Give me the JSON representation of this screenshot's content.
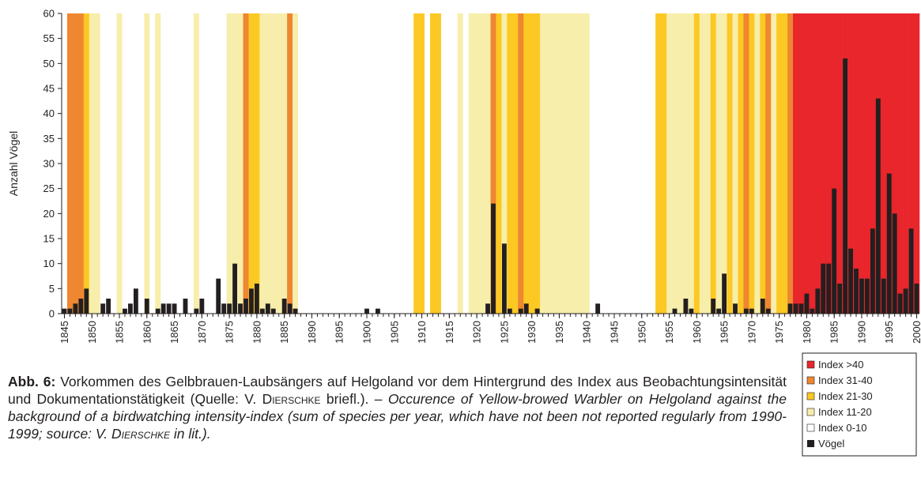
{
  "chart_data": {
    "type": "bar",
    "y_label": "Anzahl Vögel",
    "x": [
      1845,
      1846,
      1847,
      1848,
      1849,
      1850,
      1851,
      1852,
      1853,
      1854,
      1855,
      1856,
      1857,
      1858,
      1859,
      1860,
      1861,
      1862,
      1863,
      1864,
      1865,
      1866,
      1867,
      1868,
      1869,
      1870,
      1871,
      1872,
      1873,
      1874,
      1875,
      1876,
      1877,
      1878,
      1879,
      1880,
      1881,
      1882,
      1883,
      1884,
      1885,
      1886,
      1887,
      1888,
      1889,
      1890,
      1891,
      1892,
      1893,
      1894,
      1895,
      1896,
      1897,
      1898,
      1899,
      1900,
      1901,
      1902,
      1903,
      1904,
      1905,
      1906,
      1907,
      1908,
      1909,
      1910,
      1911,
      1912,
      1913,
      1914,
      1915,
      1916,
      1917,
      1918,
      1919,
      1920,
      1921,
      1922,
      1923,
      1924,
      1925,
      1926,
      1927,
      1928,
      1929,
      1930,
      1931,
      1932,
      1933,
      1934,
      1935,
      1936,
      1937,
      1938,
      1939,
      1940,
      1941,
      1942,
      1943,
      1944,
      1945,
      1946,
      1947,
      1948,
      1949,
      1950,
      1951,
      1952,
      1953,
      1954,
      1955,
      1956,
      1957,
      1958,
      1959,
      1960,
      1961,
      1962,
      1963,
      1964,
      1965,
      1966,
      1967,
      1968,
      1969,
      1970,
      1971,
      1972,
      1973,
      1974,
      1975,
      1976,
      1977,
      1978,
      1979,
      1980,
      1981,
      1982,
      1983,
      1984,
      1985,
      1986,
      1987,
      1988,
      1989,
      1990,
      1991,
      1992,
      1993,
      1994,
      1995,
      1996,
      1997,
      1998,
      1999,
      2000
    ],
    "xlim": [
      1845,
      2000
    ],
    "xticks": [
      1845,
      1850,
      1855,
      1860,
      1865,
      1870,
      1875,
      1880,
      1885,
      1890,
      1895,
      1900,
      1905,
      1910,
      1915,
      1920,
      1925,
      1930,
      1935,
      1940,
      1945,
      1950,
      1955,
      1960,
      1965,
      1970,
      1975,
      1980,
      1985,
      1990,
      1995,
      2000
    ],
    "ylim": [
      0,
      60
    ],
    "yticks": [
      0,
      5,
      10,
      15,
      20,
      25,
      30,
      35,
      40,
      45,
      50,
      55,
      60
    ],
    "index_levels": [
      {
        "name": "Index >40",
        "color": "#e8262b"
      },
      {
        "name": "Index 31-40",
        "color": "#ef8631"
      },
      {
        "name": "Index 21-30",
        "color": "#fcc823"
      },
      {
        "name": "Index 11-20",
        "color": "#f7eeab"
      },
      {
        "name": "Index 0-10",
        "color": "#ffffff"
      }
    ],
    "index": [
      "Index 0-10",
      "Index 31-40",
      "Index 31-40",
      "Index 31-40",
      "Index 21-30",
      "Index 11-20",
      "Index 11-20",
      "Index 0-10",
      "Index 0-10",
      "Index 0-10",
      "Index 11-20",
      "Index 0-10",
      "Index 0-10",
      "Index 0-10",
      "Index 0-10",
      "Index 11-20",
      "Index 0-10",
      "Index 11-20",
      "Index 0-10",
      "Index 0-10",
      "Index 0-10",
      "Index 0-10",
      "Index 0-10",
      "Index 0-10",
      "Index 11-20",
      "Index 0-10",
      "Index 0-10",
      "Index 0-10",
      "Index 0-10",
      "Index 0-10",
      "Index 11-20",
      "Index 11-20",
      "Index 11-20",
      "Index 31-40",
      "Index 21-30",
      "Index 21-30",
      "Index 11-20",
      "Index 11-20",
      "Index 11-20",
      "Index 11-20",
      "Index 11-20",
      "Index 31-40",
      "Index 11-20",
      "Index 0-10",
      "Index 0-10",
      "Index 0-10",
      "Index 0-10",
      "Index 0-10",
      "Index 0-10",
      "Index 0-10",
      "Index 0-10",
      "Index 0-10",
      "Index 0-10",
      "Index 0-10",
      "Index 0-10",
      "Index 0-10",
      "Index 0-10",
      "Index 0-10",
      "Index 0-10",
      "Index 0-10",
      "Index 0-10",
      "Index 0-10",
      "Index 0-10",
      "Index 0-10",
      "Index 21-30",
      "Index 21-30",
      "Index 0-10",
      "Index 21-30",
      "Index 21-30",
      "Index 0-10",
      "Index 0-10",
      "Index 0-10",
      "Index 11-20",
      "Index 0-10",
      "Index 11-20",
      "Index 11-20",
      "Index 11-20",
      "Index 11-20",
      "Index 31-40",
      "Index 21-30",
      "Index 11-20",
      "Index 21-30",
      "Index 21-30",
      "Index 31-40",
      "Index 21-30",
      "Index 21-30",
      "Index 21-30",
      "Index 11-20",
      "Index 11-20",
      "Index 11-20",
      "Index 11-20",
      "Index 11-20",
      "Index 11-20",
      "Index 11-20",
      "Index 11-20",
      "Index 11-20",
      "Index 0-10",
      "Index 0-10",
      "Index 0-10",
      "Index 0-10",
      "Index 0-10",
      "Index 0-10",
      "Index 0-10",
      "Index 0-10",
      "Index 0-10",
      "Index 0-10",
      "Index 0-10",
      "Index 0-10",
      "Index 21-30",
      "Index 21-30",
      "Index 11-20",
      "Index 11-20",
      "Index 11-20",
      "Index 11-20",
      "Index 11-20",
      "Index 21-30",
      "Index 11-20",
      "Index 11-20",
      "Index 21-30",
      "Index 11-20",
      "Index 11-20",
      "Index 21-30",
      "Index 11-20",
      "Index 21-30",
      "Index 31-40",
      "Index 21-30",
      "Index 11-20",
      "Index 21-30",
      "Index 31-40",
      "Index 11-20",
      "Index 21-30",
      "Index 21-30",
      "Index 31-40",
      "Index >40",
      "Index >40",
      "Index >40",
      "Index >40",
      "Index >40",
      "Index >40",
      "Index >40",
      "Index >40",
      "Index >40",
      "Index >40",
      "Index >40",
      "Index >40",
      "Index >40",
      "Index >40",
      "Index >40",
      "Index >40",
      "Index >40",
      "Index >40",
      "Index >40",
      "Index >40",
      "Index >40",
      "Index >40",
      "Index >40"
    ],
    "series": [
      {
        "name": "Vögel",
        "color": "#231f20",
        "values": [
          1,
          1,
          2,
          3,
          5,
          0,
          0,
          2,
          3,
          0,
          0,
          1,
          2,
          5,
          0,
          3,
          0,
          1,
          2,
          2,
          2,
          0,
          3,
          0,
          1,
          3,
          0,
          0,
          7,
          2,
          2,
          10,
          2,
          3,
          5,
          6,
          1,
          2,
          1,
          0,
          3,
          2,
          1,
          0,
          0,
          0,
          0,
          0,
          0,
          0,
          0,
          0,
          0,
          0,
          0,
          1,
          0,
          1,
          0,
          0,
          0,
          0,
          0,
          0,
          0,
          0,
          0,
          0,
          0,
          0,
          0,
          0,
          0,
          0,
          0,
          0,
          0,
          2,
          22,
          0,
          14,
          1,
          0,
          1,
          2,
          0,
          1,
          0,
          0,
          0,
          0,
          0,
          0,
          0,
          0,
          0,
          0,
          2,
          0,
          0,
          0,
          0,
          0,
          0,
          0,
          0,
          0,
          0,
          0,
          0,
          0,
          1,
          0,
          3,
          1,
          0,
          0,
          0,
          3,
          1,
          8,
          0,
          2,
          0,
          1,
          1,
          0,
          3,
          1,
          0,
          0,
          0,
          2,
          2,
          2,
          4,
          1,
          5,
          10,
          10,
          25,
          6,
          51,
          13,
          9,
          7,
          7,
          17,
          43,
          7,
          28,
          20,
          4,
          5,
          17,
          6
        ]
      }
    ],
    "caption": {
      "label": "Abb. 6:",
      "german_1": " Vorkommen des Gelbbrauen-Laubsängers auf Helgoland vor dem Hintergrund des Index aus Beobachtungsintensität und Dokumentationstätigkeit (Quelle: V. ",
      "author": "Dierschke",
      "german_2": " briefl.). – ",
      "english_1": "Occurence of Yellow-browed Warbler on Helgoland against the background of a birdwatching intensity-index (sum of species per year, which have not been not reported regularly from 1990-1999; source: V. ",
      "english_2": " in lit.)."
    }
  }
}
